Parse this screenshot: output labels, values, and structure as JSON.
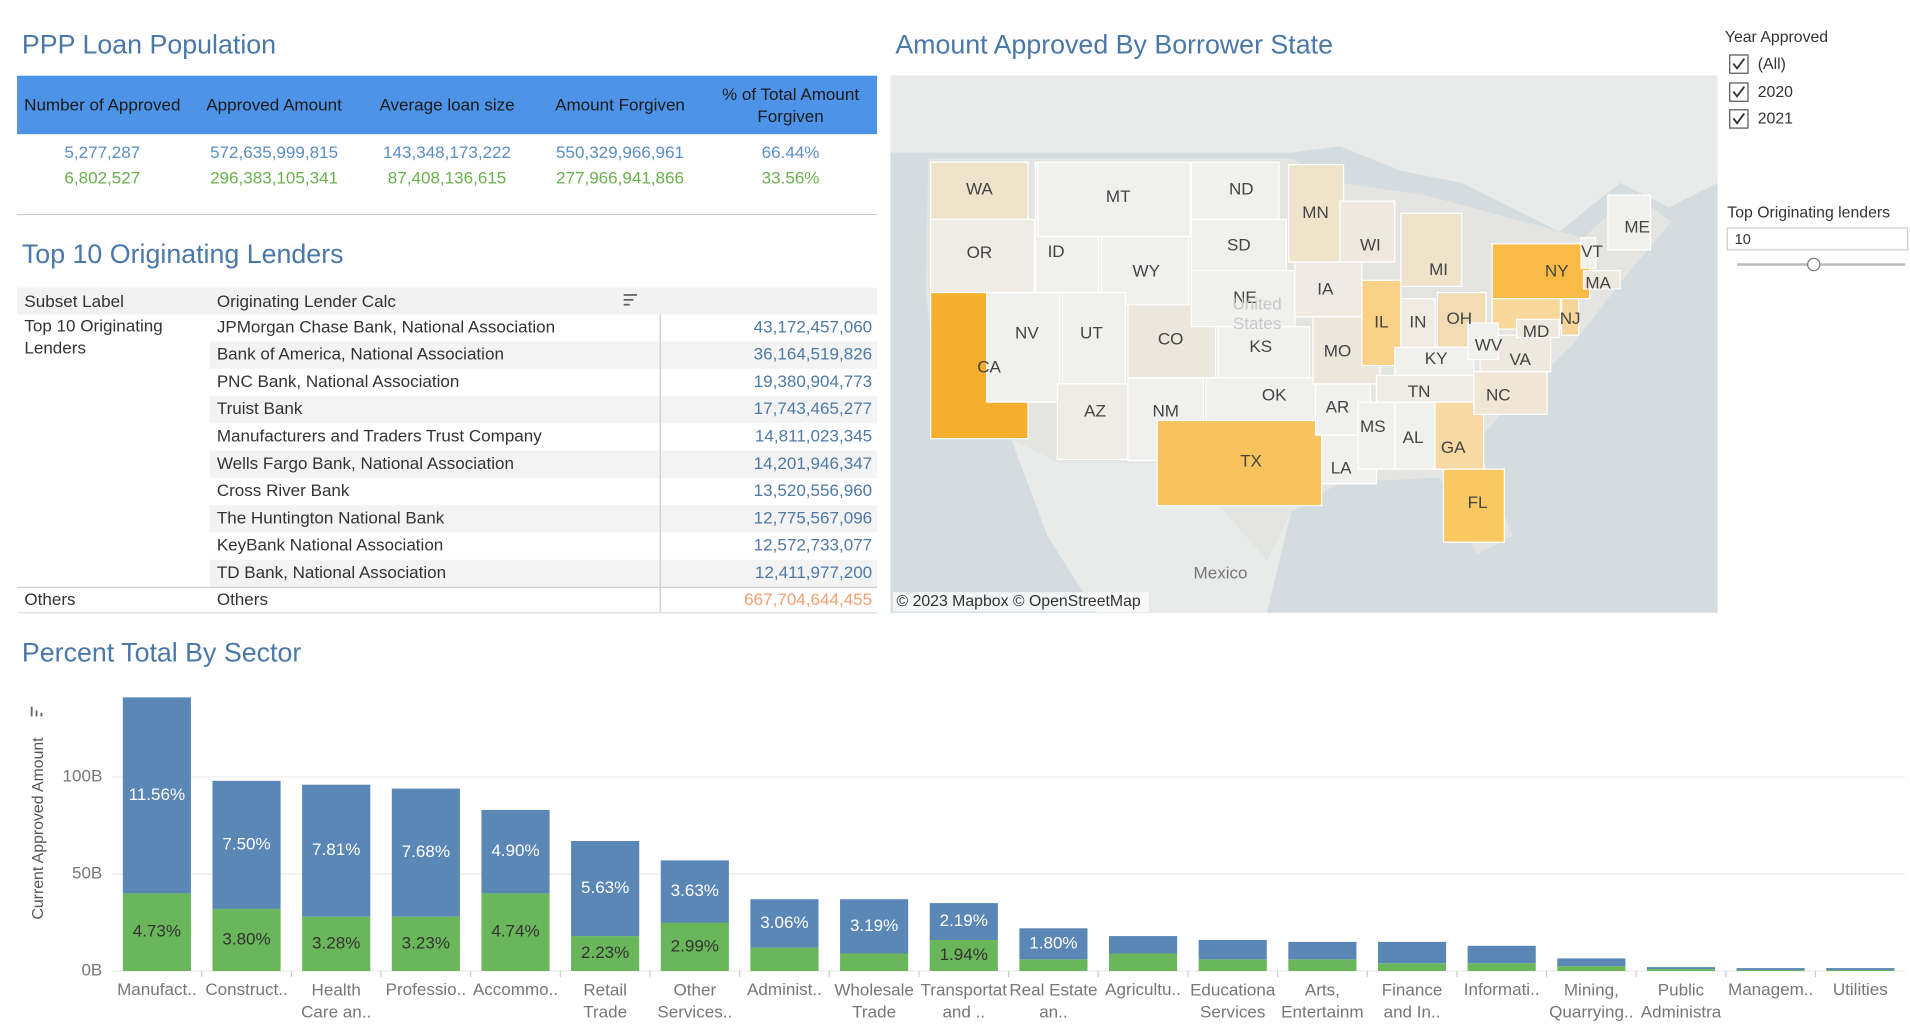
{
  "summary": {
    "title": "PPP Loan Population",
    "headers": [
      "Number of Approved",
      "Approved Amount",
      "Average loan size",
      "Amount Forgiven",
      "% of Total Amount\nForgiven"
    ],
    "rows": [
      [
        "5,277,287",
        "572,635,999,815",
        "143,348,173,222",
        "550,329,966,961",
        "66.44%"
      ],
      [
        "6,802,527",
        "296,383,105,341",
        "87,408,136,615",
        "277,966,941,866",
        "33.56%"
      ]
    ]
  },
  "lenders": {
    "title": "Top 10 Originating Lenders",
    "headers": [
      "Subset Label",
      "Originating Lender Calc"
    ],
    "group_label": "Top 10 Originating\nLenders",
    "rows": [
      {
        "lender": "JPMorgan Chase Bank, National Association",
        "amount": "43,172,457,060"
      },
      {
        "lender": "Bank of America, National Association",
        "amount": "36,164,519,826"
      },
      {
        "lender": "PNC Bank, National Association",
        "amount": "19,380,904,773"
      },
      {
        "lender": "Truist Bank",
        "amount": "17,743,465,277"
      },
      {
        "lender": "Manufacturers and Traders Trust Company",
        "amount": "14,811,023,345"
      },
      {
        "lender": "Wells Fargo Bank, National Association",
        "amount": "14,201,946,347"
      },
      {
        "lender": "Cross River Bank",
        "amount": "13,520,556,960"
      },
      {
        "lender": "The Huntington National Bank",
        "amount": "12,775,567,096"
      },
      {
        "lender": "KeyBank National Association",
        "amount": "12,572,733,077"
      },
      {
        "lender": "TD Bank, National Association",
        "amount": "12,411,977,200"
      }
    ],
    "others": {
      "subset": "Others",
      "lender": "Others",
      "amount": "667,704,644,455"
    }
  },
  "map": {
    "title": "Amount Approved By Borrower State",
    "states": [
      {
        "label": "WA",
        "color": "#efe3cc"
      },
      {
        "label": "OR",
        "color": "#efece6"
      },
      {
        "label": "CA",
        "color": "#f6ae2d"
      },
      {
        "label": "NV",
        "color": "#f0f0ee"
      },
      {
        "label": "ID",
        "color": "#f0f0ee"
      },
      {
        "label": "MT",
        "color": "#f0f0ee"
      },
      {
        "label": "WY",
        "color": "#f0f0ee"
      },
      {
        "label": "UT",
        "color": "#f0f0ee"
      },
      {
        "label": "CO",
        "color": "#ece6dc"
      },
      {
        "label": "AZ",
        "color": "#efebe5"
      },
      {
        "label": "NM",
        "color": "#f0f0ee"
      },
      {
        "label": "ND",
        "color": "#f0f0ee"
      },
      {
        "label": "SD",
        "color": "#f0f0ee"
      },
      {
        "label": "NE",
        "color": "#f0f0ee"
      },
      {
        "label": "KS",
        "color": "#f0f0ee"
      },
      {
        "label": "OK",
        "color": "#f0f0ee"
      },
      {
        "label": "TX",
        "color": "#f8c25c"
      },
      {
        "label": "MN",
        "color": "#efe3cc"
      },
      {
        "label": "IA",
        "color": "#efebe4"
      },
      {
        "label": "MO",
        "color": "#ede6da"
      },
      {
        "label": "AR",
        "color": "#f0f0ee"
      },
      {
        "label": "LA",
        "color": "#f0f0ee"
      },
      {
        "label": "WI",
        "color": "#efe8de"
      },
      {
        "label": "IL",
        "color": "#f9d287"
      },
      {
        "label": "MI",
        "color": "#efe3cc"
      },
      {
        "label": "IN",
        "color": "#f0ece4"
      },
      {
        "label": "OH",
        "color": "#f2dcb5"
      },
      {
        "label": "KY",
        "color": "#f0f0ee"
      },
      {
        "label": "TN",
        "color": "#efebe5"
      },
      {
        "label": "MS",
        "color": "#f0f0ee"
      },
      {
        "label": "AL",
        "color": "#f0f0ee"
      },
      {
        "label": "GA",
        "color": "#f6d9a3"
      },
      {
        "label": "FL",
        "color": "#f9c860"
      },
      {
        "label": "NC",
        "color": "#efe6d6"
      },
      {
        "label": "VA",
        "color": "#efe8de"
      },
      {
        "label": "WV",
        "color": "#f0f0ee"
      },
      {
        "label": "MD",
        "color": "#efe8de"
      },
      {
        "label": "NJ",
        "color": "#f5d59a"
      },
      {
        "label": "NY",
        "color": "#f8bb45"
      },
      {
        "label": "VT",
        "color": "#f0f0ee"
      },
      {
        "label": "MA",
        "color": "#efe8de"
      },
      {
        "label": "ME",
        "color": "#f0f0ee"
      }
    ],
    "place_labels": [
      "United\nStates",
      "Mexico"
    ],
    "attribution": "© 2023 Mapbox © OpenStreetMap"
  },
  "filters": {
    "year": {
      "title": "Year Approved",
      "options": [
        "(All)",
        "2020",
        "2021"
      ]
    },
    "top_lenders": {
      "title": "Top Originating lenders",
      "value": "10"
    }
  },
  "chart_data": {
    "type": "stacked_bar",
    "title": "Percent Total By Sector",
    "y_label": "Current Approved Amount",
    "categories": [
      "Manufact..",
      "Construct..",
      "Health\nCare an..",
      "Professio..",
      "Accommo..",
      "Retail\nTrade",
      "Other\nServices..",
      "Administ..",
      "Wholesale\nTrade",
      "Transportat\nand ..",
      "Real Estate\nan..",
      "Agricultu..",
      "Educationa\nServices",
      "Arts,\nEntertainm",
      "Finance\nand In..",
      "Informati..",
      "Mining,\nQuarrying..",
      "Public\nAdministra",
      "Managem..",
      "Utilities"
    ],
    "series": [
      {
        "color": "#6ab65a",
        "label_color": "#333333",
        "values": [
          40,
          32,
          28,
          28,
          40,
          18,
          25,
          12,
          9,
          16,
          6,
          9,
          6,
          6,
          4,
          4,
          2.5,
          1,
          0.5,
          0.5
        ],
        "percent_labels": [
          "4.73%",
          "3.80%",
          "3.28%",
          "3.23%",
          "4.74%",
          "2.23%",
          "2.99%",
          null,
          null,
          "1.94%",
          null,
          null,
          null,
          null,
          null,
          null,
          null,
          null,
          null,
          null
        ]
      },
      {
        "color": "#5a87b5",
        "label_color": "#ffffff",
        "values": [
          101,
          66,
          68,
          66,
          43,
          49,
          32,
          25,
          28,
          19,
          16,
          9,
          10,
          9,
          11,
          9,
          4,
          1,
          1,
          1
        ],
        "percent_labels": [
          "11.56%",
          "7.50%",
          "7.81%",
          "7.68%",
          "4.90%",
          "5.63%",
          "3.63%",
          "3.06%",
          "3.19%",
          "2.19%",
          "1.80%",
          null,
          null,
          null,
          null,
          null,
          null,
          null,
          null,
          null
        ]
      }
    ],
    "ylim": [
      0,
      145
    ],
    "yticks": [
      {
        "value": 0,
        "label": "0B"
      },
      {
        "value": 50,
        "label": "50B"
      },
      {
        "value": 100,
        "label": "100B"
      }
    ],
    "grid": true
  }
}
